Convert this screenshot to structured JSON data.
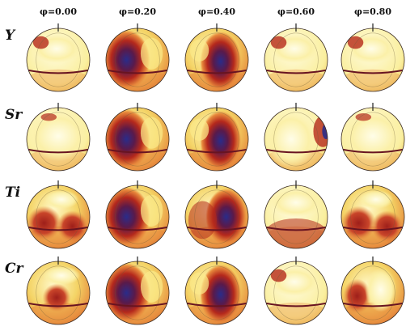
{
  "columns": [
    "φ=0.00",
    "φ=0.20",
    "φ=0.40",
    "φ=0.60",
    "φ=0.80"
  ],
  "rows": [
    {
      "label": "Y",
      "maps": [
        "pale-top",
        "blue-left",
        "blue-center",
        "pale-top",
        "pale-top"
      ]
    },
    {
      "label": "Sr",
      "maps": [
        "pale-full",
        "blue-left",
        "blue-center",
        "pale-red-right",
        "pale-full"
      ]
    },
    {
      "label": "Ti",
      "maps": [
        "red-spots",
        "blue-left",
        "blue-right",
        "pale-top-red",
        "red-spots"
      ]
    },
    {
      "label": "Cr",
      "maps": [
        "red-spot-center",
        "blue-left",
        "blue-center",
        "pale-top",
        "red-left"
      ]
    }
  ],
  "colors": {
    "pale": "#fbf3b8",
    "yellow": "#f3d35f",
    "orange": "#e7893c",
    "red": "#b5291c",
    "dark_red": "#681421",
    "blue": "#2a2c8a",
    "outline": "#3a2a20"
  }
}
